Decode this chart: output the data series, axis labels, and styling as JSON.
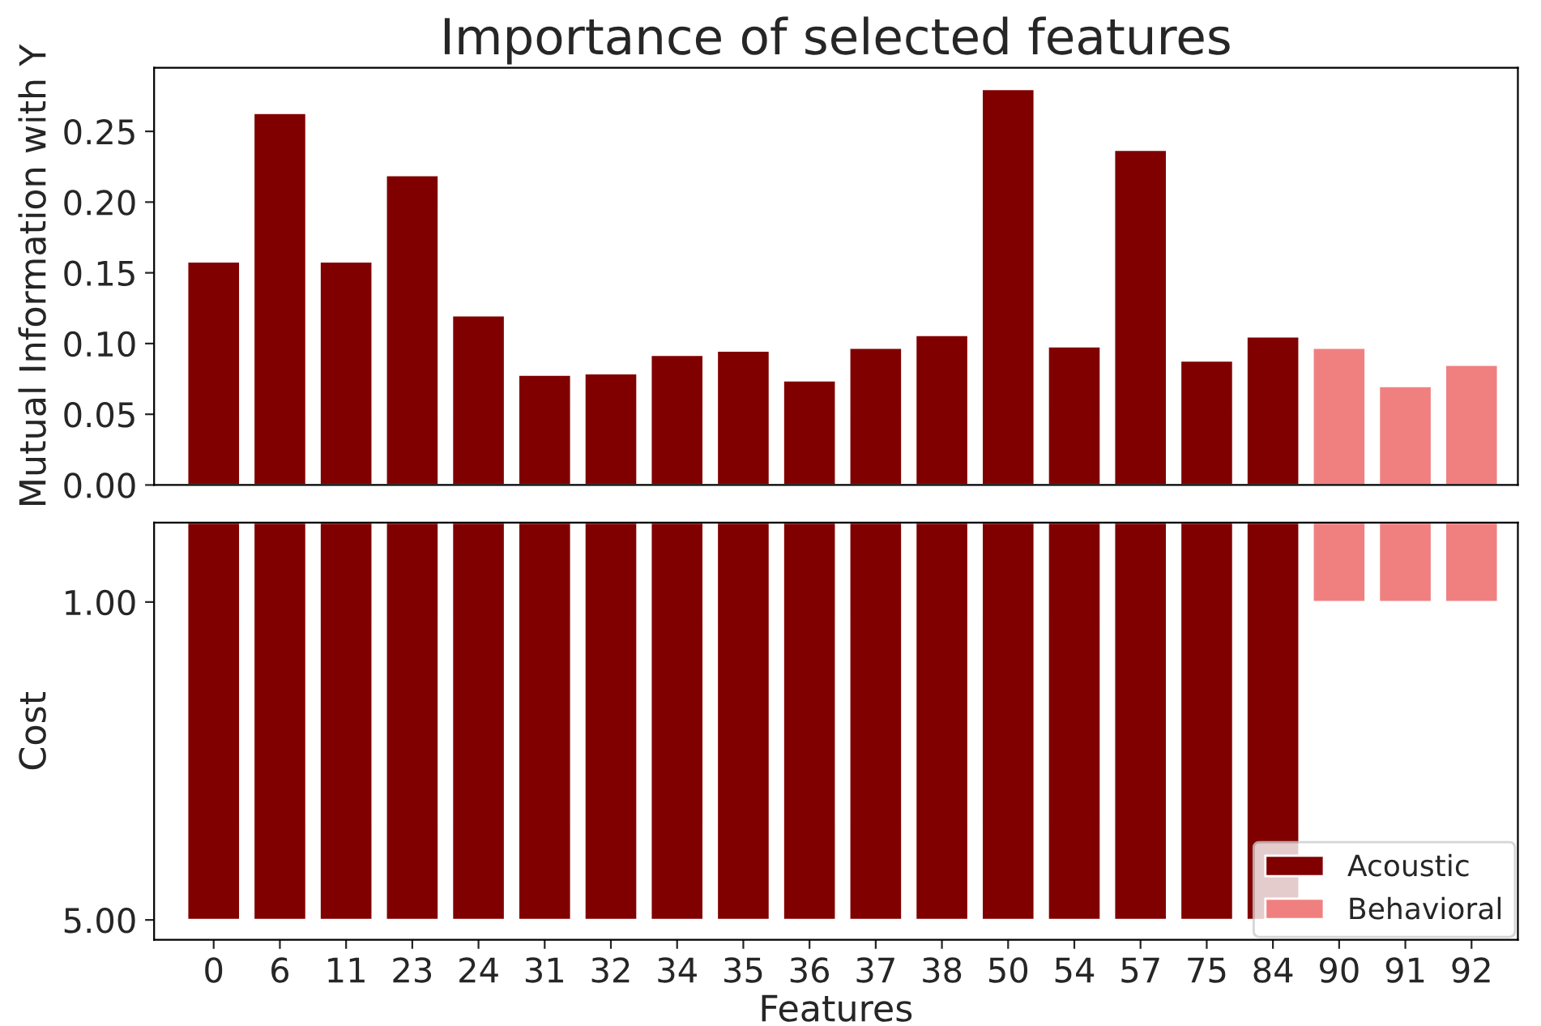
{
  "chart_data": [
    {
      "type": "bar",
      "title": "Importance of selected features",
      "ylabel": "Mutual Information with Y",
      "categories": [
        "0",
        "6",
        "11",
        "23",
        "24",
        "31",
        "32",
        "34",
        "35",
        "36",
        "37",
        "38",
        "50",
        "54",
        "57",
        "75",
        "84",
        "90",
        "91",
        "92"
      ],
      "values": [
        0.158,
        0.263,
        0.158,
        0.219,
        0.12,
        0.078,
        0.079,
        0.092,
        0.095,
        0.074,
        0.097,
        0.106,
        0.28,
        0.098,
        0.237,
        0.088,
        0.105,
        0.097,
        0.07,
        0.085
      ],
      "colors": [
        "#800000",
        "#800000",
        "#800000",
        "#800000",
        "#800000",
        "#800000",
        "#800000",
        "#800000",
        "#800000",
        "#800000",
        "#800000",
        "#800000",
        "#800000",
        "#800000",
        "#800000",
        "#800000",
        "#800000",
        "#f08080",
        "#f08080",
        "#f08080"
      ],
      "ylim": [
        0,
        0.295
      ],
      "yticks": [
        {
          "value": 0,
          "label": "0.00"
        },
        {
          "value": 0.05,
          "label": "0.05"
        },
        {
          "value": 0.1,
          "label": "0.10"
        },
        {
          "value": 0.15,
          "label": "0.15"
        },
        {
          "value": 0.2,
          "label": "0.20"
        },
        {
          "value": 0.25,
          "label": "0.25"
        }
      ],
      "tick_labels": "y",
      "grid": false,
      "legend": false
    },
    {
      "type": "bar",
      "xlabel": "Features",
      "ylabel": "Cost",
      "categories": [
        "0",
        "6",
        "11",
        "23",
        "24",
        "31",
        "32",
        "34",
        "35",
        "36",
        "37",
        "38",
        "50",
        "54",
        "57",
        "75",
        "84",
        "90",
        "91",
        "92"
      ],
      "series": [
        {
          "name": "Acoustic",
          "color": "#800000",
          "values": [
            5,
            5,
            5,
            5,
            5,
            5,
            5,
            5,
            5,
            5,
            5,
            5,
            5,
            5,
            5,
            5,
            5,
            null,
            null,
            null
          ]
        },
        {
          "name": "Behavioral",
          "color": "#f08080",
          "values": [
            null,
            null,
            null,
            null,
            null,
            null,
            null,
            null,
            null,
            null,
            null,
            null,
            null,
            null,
            null,
            null,
            null,
            1,
            1,
            1
          ]
        }
      ],
      "ylim": [
        5.25,
        0
      ],
      "yticks": [
        {
          "value": 1,
          "label": "1.00"
        },
        {
          "value": 5,
          "label": "5.00"
        }
      ],
      "grid": false,
      "legend": "bottom right"
    }
  ]
}
